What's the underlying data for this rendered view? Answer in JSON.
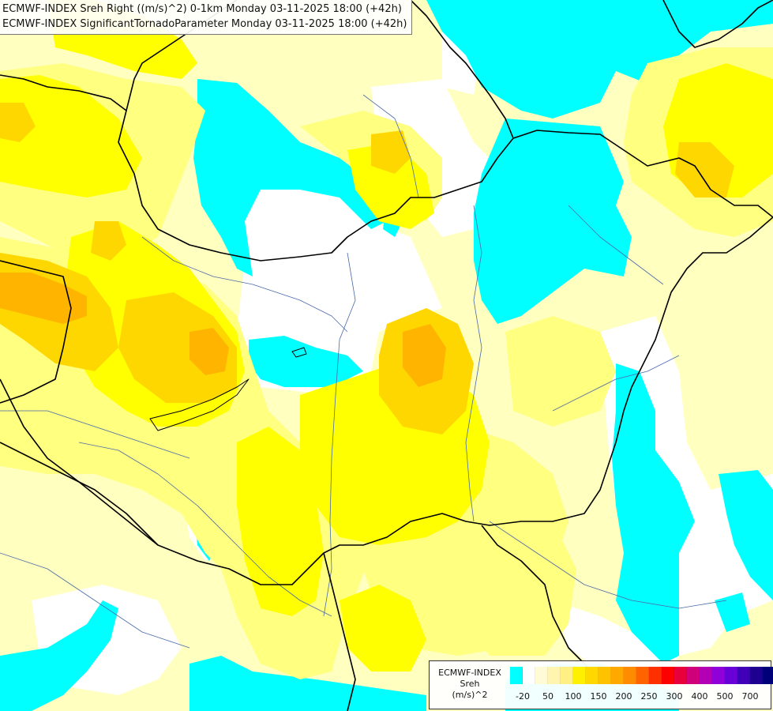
{
  "title": {
    "line1": "ECMWF-INDEX Sreh Right ((m/s)^2) 0-1km Monday 03-11-2025 18:00 (+42h)",
    "line2": "ECMWF-INDEX SignificantTornadoParameter Monday 03-11-2025 18:00 (+42h)"
  },
  "legend": {
    "line1": "ECMWF-INDEX",
    "line2": "Sreh",
    "line3": "(m/s)^2",
    "colors": [
      "#00ffff",
      "#ffffff",
      "#fffbd6",
      "#fff5b0",
      "#ffef84",
      "#fff000",
      "#ffd800",
      "#ffc200",
      "#ffa800",
      "#ff8c00",
      "#ff6400",
      "#ff3000",
      "#ff0000",
      "#e8003c",
      "#d0007a",
      "#b400b4",
      "#9000d8",
      "#6a00d8",
      "#4000b8",
      "#1e0090",
      "#000078"
    ],
    "ticks": [
      "-20",
      "50",
      "100",
      "150",
      "200",
      "250",
      "300",
      "400",
      "500",
      "700"
    ]
  },
  "palette": {
    "cyan": "#00ffff",
    "white": "#ffffff",
    "pale_yellow": "#ffffc0",
    "light_yellow": "#ffff80",
    "yellow": "#ffff00",
    "gold": "#ffd700",
    "orange": "#ffb400",
    "dark_orange": "#ff8c00",
    "border": "#000000",
    "river": "#4a6aa8"
  }
}
